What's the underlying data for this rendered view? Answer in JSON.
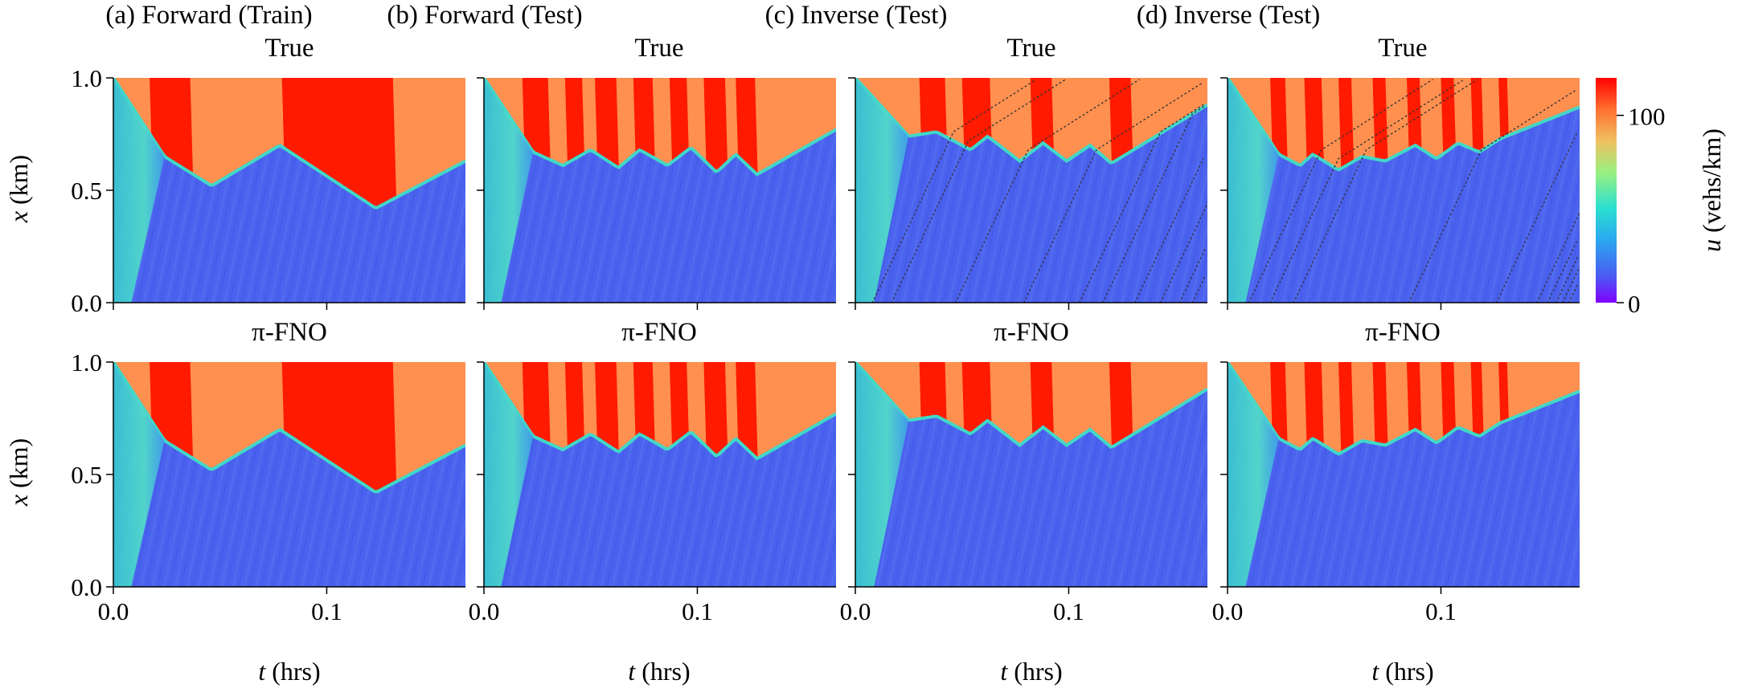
{
  "chart_data": {
    "type": "heatmap",
    "panel_titles": [
      "(a) Forward (Train)",
      "(b) Forward (Test)",
      "(c) Inverse (Test)",
      "(d) Inverse (Test)"
    ],
    "row_titles": [
      "True",
      "π-FNO"
    ],
    "xlabel": {
      "var": "t",
      "unit": " (hrs)"
    },
    "ylabel": {
      "var": "x",
      "unit": " (km)"
    },
    "colorbar_label": {
      "var": "u",
      "unit": " (vehs/km)"
    },
    "xlim": [
      0,
      0.165
    ],
    "ylim": [
      0,
      1.0
    ],
    "x_ticks": [
      0.0,
      0.1
    ],
    "x_tick_labels": [
      "0.0",
      "0.1"
    ],
    "y_ticks": [
      0.0,
      0.5,
      1.0
    ],
    "y_tick_labels": [
      "0.0",
      "0.5",
      "1.0"
    ],
    "colorbar_range": [
      0,
      120
    ],
    "colorbar_ticks": [
      0,
      100
    ],
    "colorbar_tick_labels": [
      "0",
      "100"
    ],
    "colormap": "rainbow",
    "colors": {
      "jam_red": "#ff1a00",
      "congested_orange": "#ff9050",
      "free_flow_blue": "#4b62ee",
      "transition_cyan": "#40d8c8",
      "probe_marker": "#333333"
    },
    "panels": [
      {
        "name": "a",
        "queue_front": [
          [
            0.0,
            1.0
          ],
          [
            0.024,
            0.65
          ],
          [
            0.046,
            0.52
          ],
          [
            0.078,
            0.7
          ],
          [
            0.123,
            0.42
          ],
          [
            0.165,
            0.63
          ]
        ],
        "jam_bands": [
          [
            0.017,
            0.036
          ],
          [
            0.079,
            0.131
          ]
        ],
        "probe_vehicles": false
      },
      {
        "name": "b",
        "queue_front": [
          [
            0.0,
            1.0
          ],
          [
            0.023,
            0.67
          ],
          [
            0.037,
            0.61
          ],
          [
            0.05,
            0.68
          ],
          [
            0.063,
            0.6
          ],
          [
            0.073,
            0.68
          ],
          [
            0.086,
            0.61
          ],
          [
            0.097,
            0.69
          ],
          [
            0.109,
            0.58
          ],
          [
            0.118,
            0.66
          ],
          [
            0.128,
            0.57
          ],
          [
            0.165,
            0.77
          ]
        ],
        "jam_bands": [
          [
            0.018,
            0.03
          ],
          [
            0.038,
            0.046
          ],
          [
            0.052,
            0.062
          ],
          [
            0.07,
            0.079
          ],
          [
            0.087,
            0.095
          ],
          [
            0.103,
            0.113
          ],
          [
            0.118,
            0.127
          ]
        ],
        "probe_vehicles": false
      },
      {
        "name": "c",
        "queue_front": [
          [
            0.0,
            1.0
          ],
          [
            0.025,
            0.74
          ],
          [
            0.038,
            0.76
          ],
          [
            0.054,
            0.68
          ],
          [
            0.062,
            0.74
          ],
          [
            0.077,
            0.63
          ],
          [
            0.088,
            0.71
          ],
          [
            0.099,
            0.63
          ],
          [
            0.11,
            0.7
          ],
          [
            0.12,
            0.62
          ],
          [
            0.165,
            0.88
          ]
        ],
        "jam_bands": [
          [
            0.03,
            0.042
          ],
          [
            0.05,
            0.063
          ],
          [
            0.082,
            0.092
          ],
          [
            0.119,
            0.129
          ]
        ],
        "probe_vehicles": true,
        "probe_starts": [
          0.008,
          0.017,
          0.047,
          0.079,
          0.105,
          0.116,
          0.131,
          0.143,
          0.152,
          0.158
        ]
      },
      {
        "name": "d",
        "queue_front": [
          [
            0.0,
            1.0
          ],
          [
            0.024,
            0.66
          ],
          [
            0.034,
            0.61
          ],
          [
            0.04,
            0.66
          ],
          [
            0.052,
            0.59
          ],
          [
            0.063,
            0.65
          ],
          [
            0.074,
            0.63
          ],
          [
            0.088,
            0.7
          ],
          [
            0.098,
            0.64
          ],
          [
            0.108,
            0.71
          ],
          [
            0.118,
            0.67
          ],
          [
            0.128,
            0.73
          ],
          [
            0.165,
            0.87
          ]
        ],
        "jam_bands": [
          [
            0.02,
            0.027
          ],
          [
            0.036,
            0.044
          ],
          [
            0.052,
            0.058
          ],
          [
            0.068,
            0.074
          ],
          [
            0.084,
            0.09
          ],
          [
            0.1,
            0.106
          ],
          [
            0.114,
            0.119
          ],
          [
            0.127,
            0.131
          ]
        ],
        "probe_vehicles": true,
        "probe_starts": [
          0.01,
          0.02,
          0.031,
          0.085,
          0.126,
          0.145,
          0.15,
          0.154,
          0.157,
          0.16
        ]
      }
    ]
  }
}
